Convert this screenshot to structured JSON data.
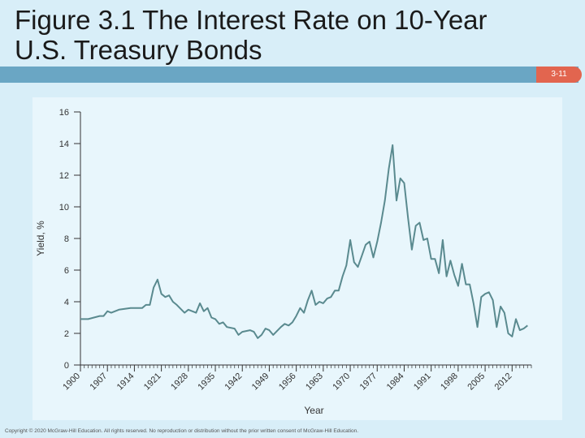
{
  "slide": {
    "title_line1": "Figure 3.1 The Interest Rate on 10-Year",
    "title_line2": "U.S. Treasury Bonds",
    "page_number": "3-11",
    "copyright": "Copyright © 2020 McGraw-Hill Education. All rights reserved. No reproduction or distribution without the prior written consent of McGraw-Hill Education."
  },
  "colors": {
    "line": "#5a8a8f",
    "axis": "#333333",
    "title_bar": "#6aa6c4",
    "page_tab": "#e2654f"
  },
  "chart_data": {
    "type": "line",
    "title": "",
    "xlabel": "Year",
    "ylabel": "Yield, %",
    "xlim": [
      1900,
      2017
    ],
    "ylim": [
      0,
      16
    ],
    "yticks": [
      0,
      2,
      4,
      6,
      8,
      10,
      12,
      14,
      16
    ],
    "xticks": [
      1900,
      1907,
      1914,
      1921,
      1928,
      1935,
      1942,
      1949,
      1956,
      1963,
      1970,
      1977,
      1984,
      1991,
      1998,
      2005,
      2012
    ],
    "grid": false,
    "series": [
      {
        "x": [
          1900,
          1902,
          1905,
          1906,
          1907,
          1908,
          1910,
          1913,
          1916,
          1917,
          1918,
          1919,
          1920,
          1921,
          1922,
          1923,
          1924,
          1925,
          1927,
          1928,
          1929,
          1930,
          1931,
          1932,
          1933,
          1934,
          1935,
          1936,
          1937,
          1938,
          1940,
          1941,
          1942,
          1944,
          1945,
          1946,
          1947,
          1948,
          1949,
          1950,
          1952,
          1953,
          1954,
          1955,
          1956,
          1957,
          1958,
          1959,
          1960,
          1961,
          1962,
          1963,
          1964,
          1965,
          1966,
          1967,
          1968,
          1969,
          1970,
          1971,
          1972,
          1973,
          1974,
          1975,
          1976,
          1977,
          1978,
          1979,
          1980,
          1981,
          1982,
          1983,
          1984,
          1985,
          1986,
          1987,
          1988,
          1989,
          1990,
          1991,
          1992,
          1993,
          1994,
          1995,
          1996,
          1997,
          1998,
          1999,
          2000,
          2001,
          2002,
          2003,
          2004,
          2005,
          2006,
          2007,
          2008,
          2009,
          2010,
          2011,
          2012,
          2013,
          2014,
          2015,
          2016
        ],
        "y": [
          2.9,
          2.9,
          3.1,
          3.1,
          3.4,
          3.3,
          3.5,
          3.6,
          3.6,
          3.8,
          3.8,
          4.9,
          5.4,
          4.5,
          4.3,
          4.4,
          4.0,
          3.8,
          3.3,
          3.5,
          3.4,
          3.3,
          3.9,
          3.4,
          3.6,
          3.0,
          2.9,
          2.6,
          2.7,
          2.4,
          2.3,
          1.9,
          2.1,
          2.2,
          2.1,
          1.7,
          1.9,
          2.3,
          2.2,
          1.9,
          2.4,
          2.6,
          2.5,
          2.7,
          3.1,
          3.6,
          3.3,
          4.1,
          4.7,
          3.8,
          4.0,
          3.9,
          4.2,
          4.3,
          4.7,
          4.7,
          5.6,
          6.3,
          7.9,
          6.5,
          6.2,
          6.9,
          7.6,
          7.8,
          6.8,
          7.8,
          9.0,
          10.4,
          12.4,
          13.9,
          10.4,
          11.8,
          11.5,
          9.3,
          7.3,
          8.8,
          9.0,
          7.9,
          8.0,
          6.7,
          6.7,
          5.8,
          7.9,
          5.6,
          6.6,
          5.7,
          5.0,
          6.4,
          5.1,
          5.1,
          3.9,
          2.4,
          4.3,
          4.5,
          4.6,
          4.1,
          2.4,
          3.7,
          3.3,
          2.0,
          1.8,
          2.9,
          2.2,
          2.3,
          2.5
        ]
      }
    ]
  }
}
